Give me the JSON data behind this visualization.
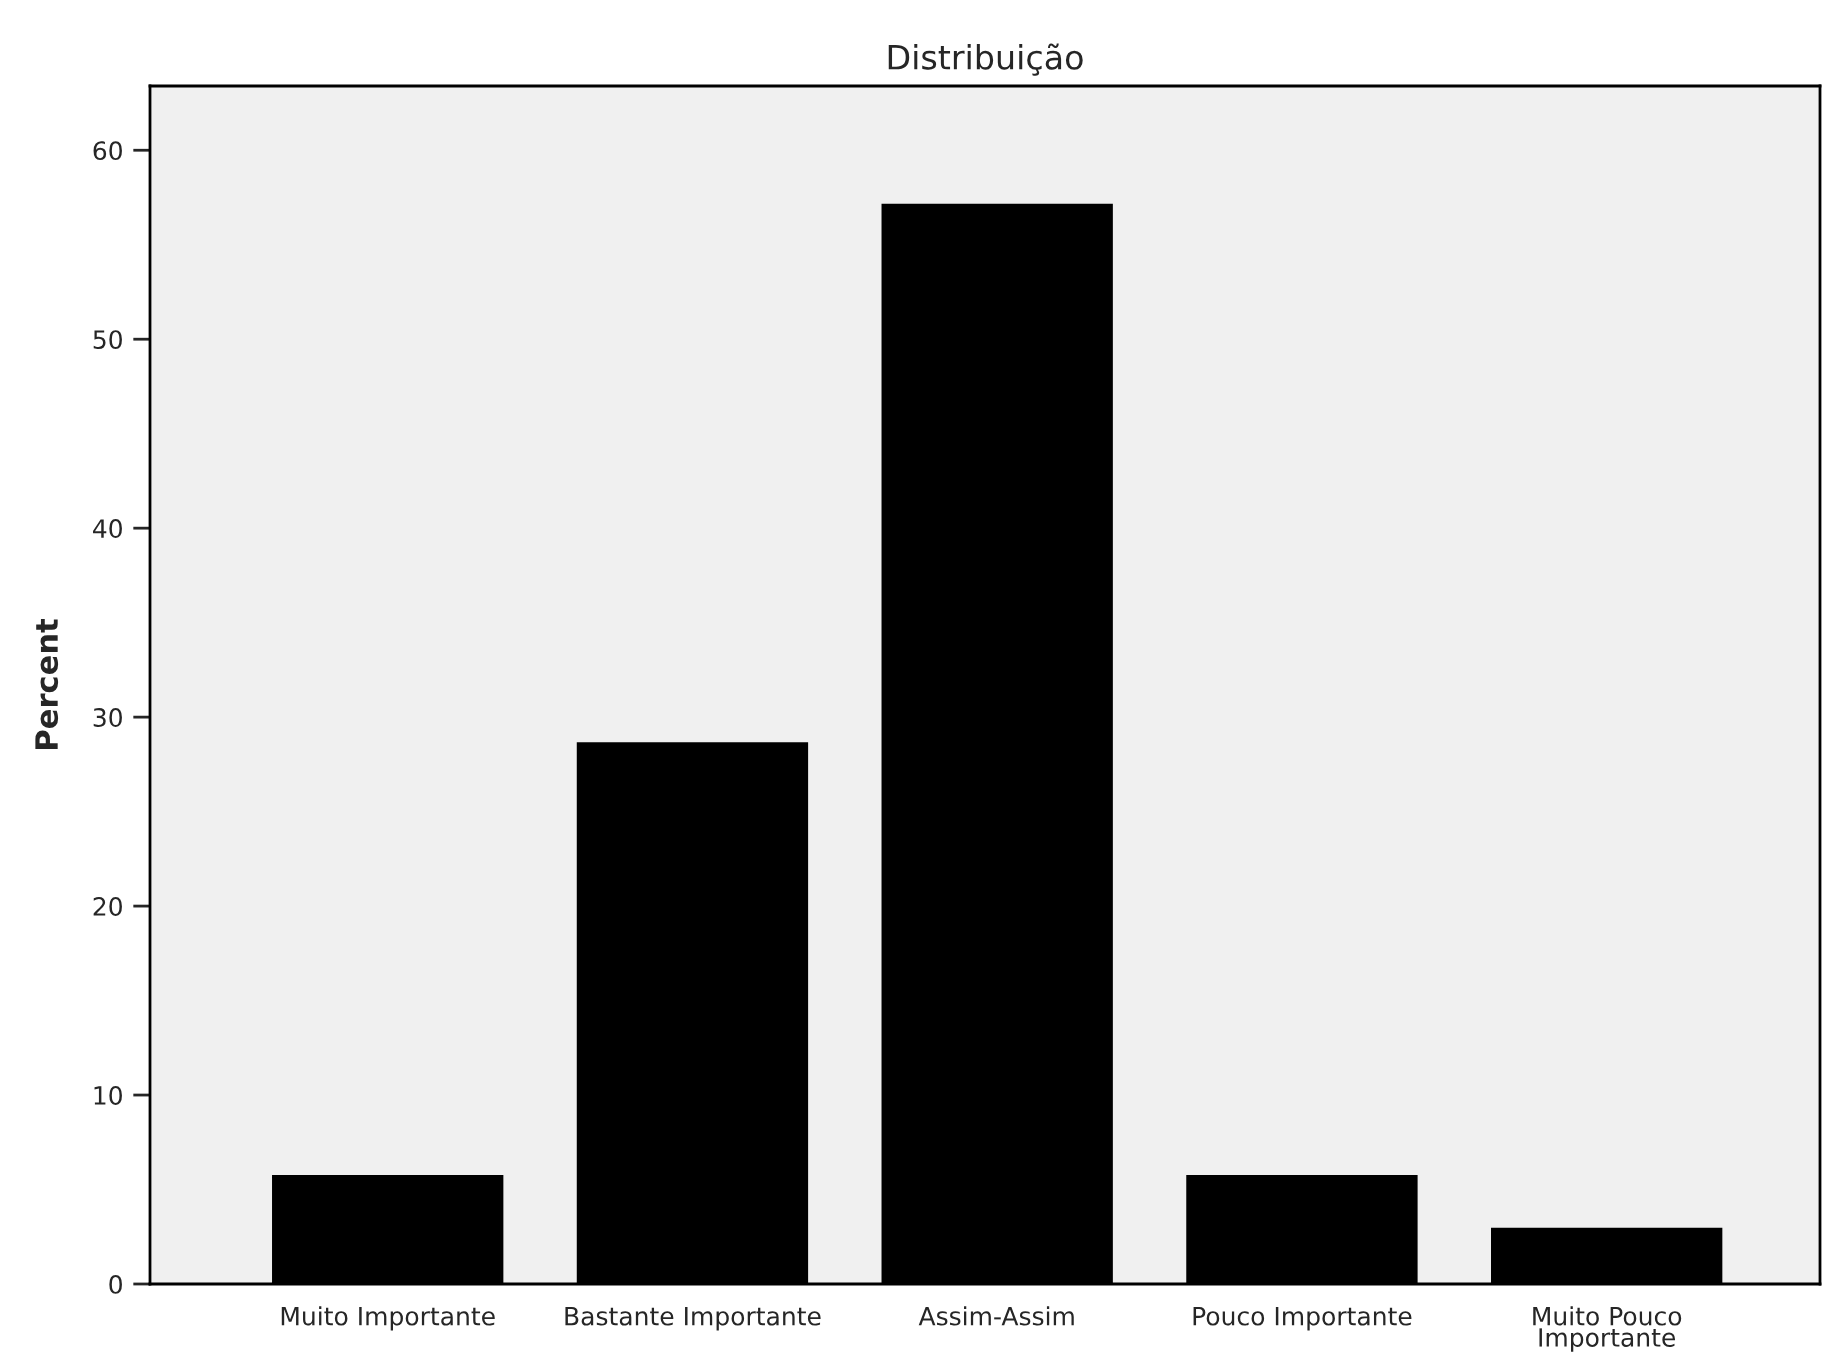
{
  "chart_data": {
    "type": "bar",
    "title": "Distribuição",
    "ylabel": "Percent",
    "categories": [
      "Muito Importante",
      "Bastante Importante",
      "Assim-Assim",
      "Pouco Importante",
      "Muito Pouco\nImportante"
    ],
    "values": [
      5.7,
      28.6,
      57.1,
      5.7,
      2.9
    ],
    "color": "#000000",
    "ylim": [
      0,
      63.4
    ],
    "yticks": [
      0,
      10,
      20,
      30,
      40,
      50,
      60
    ],
    "grid": false,
    "legend": false
  }
}
